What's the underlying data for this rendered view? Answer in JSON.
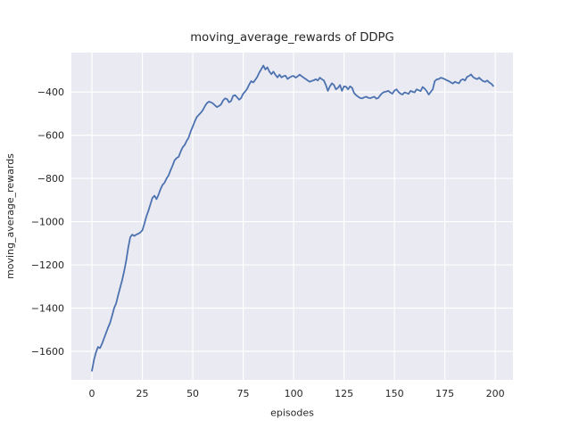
{
  "figure": {
    "title": "moving_average_rewards of DDPG",
    "xlabel": "episodes",
    "ylabel": "moving_average_rewards"
  },
  "chart_data": {
    "type": "line",
    "title": "moving_average_rewards of DDPG",
    "xlabel": "episodes",
    "ylabel": "moving_average_rewards",
    "legend": false,
    "grid": true,
    "style": "seaborn-darkgrid",
    "xlim": [
      -10.2,
      208.8
    ],
    "ylim": [
      -1732,
      -218
    ],
    "xticks": [
      0,
      25,
      50,
      75,
      100,
      125,
      150,
      175,
      200
    ],
    "yticks": [
      -400,
      -600,
      -800,
      -1000,
      -1200,
      -1400,
      -1600
    ],
    "colors": {
      "line": "#4C72B0",
      "plot_bg": "#EAEAF2",
      "grid": "#FFFFFF",
      "text": "#262626",
      "figure_bg": "#FFFFFF"
    },
    "series": [
      {
        "name": "moving_average_rewards",
        "x": [
          0,
          1,
          2,
          3,
          4,
          5,
          6,
          7,
          8,
          9,
          10,
          11,
          12,
          13,
          14,
          15,
          16,
          17,
          18,
          19,
          20,
          21,
          22,
          23,
          24,
          25,
          26,
          27,
          28,
          29,
          30,
          31,
          32,
          33,
          34,
          35,
          36,
          37,
          38,
          39,
          40,
          41,
          42,
          43,
          44,
          45,
          46,
          47,
          48,
          49,
          50,
          51,
          52,
          53,
          54,
          55,
          56,
          57,
          58,
          59,
          60,
          61,
          62,
          63,
          64,
          65,
          66,
          67,
          68,
          69,
          70,
          71,
          72,
          73,
          74,
          75,
          76,
          77,
          78,
          79,
          80,
          81,
          82,
          83,
          84,
          85,
          86,
          87,
          88,
          89,
          90,
          91,
          92,
          93,
          94,
          95,
          96,
          97,
          98,
          99,
          100,
          101,
          102,
          103,
          104,
          105,
          106,
          107,
          108,
          109,
          110,
          111,
          112,
          113,
          114,
          115,
          116,
          117,
          118,
          119,
          120,
          121,
          122,
          123,
          124,
          125,
          126,
          127,
          128,
          129,
          130,
          131,
          132,
          133,
          134,
          135,
          136,
          137,
          138,
          139,
          140,
          141,
          142,
          143,
          144,
          145,
          146,
          147,
          148,
          149,
          150,
          151,
          152,
          153,
          154,
          155,
          156,
          157,
          158,
          159,
          160,
          161,
          162,
          163,
          164,
          165,
          166,
          167,
          168,
          169,
          170,
          171,
          172,
          173,
          174,
          175,
          176,
          177,
          178,
          179,
          180,
          181,
          182,
          183,
          184,
          185,
          186,
          187,
          188,
          189,
          190,
          191,
          192,
          193,
          194,
          195,
          196,
          197,
          198,
          199
        ],
        "y": [
          -1690,
          -1640,
          -1605,
          -1580,
          -1585,
          -1565,
          -1540,
          -1515,
          -1490,
          -1468,
          -1435,
          -1400,
          -1378,
          -1340,
          -1305,
          -1270,
          -1228,
          -1180,
          -1120,
          -1072,
          -1060,
          -1066,
          -1060,
          -1056,
          -1050,
          -1040,
          -1010,
          -976,
          -950,
          -920,
          -890,
          -880,
          -896,
          -876,
          -850,
          -830,
          -820,
          -800,
          -786,
          -762,
          -740,
          -716,
          -706,
          -700,
          -676,
          -656,
          -645,
          -626,
          -610,
          -582,
          -560,
          -536,
          -516,
          -506,
          -496,
          -484,
          -466,
          -452,
          -445,
          -448,
          -453,
          -462,
          -470,
          -465,
          -458,
          -440,
          -430,
          -433,
          -448,
          -442,
          -418,
          -415,
          -425,
          -436,
          -428,
          -408,
          -398,
          -385,
          -365,
          -350,
          -356,
          -344,
          -330,
          -310,
          -294,
          -278,
          -296,
          -286,
          -306,
          -318,
          -306,
          -321,
          -333,
          -320,
          -333,
          -327,
          -325,
          -340,
          -333,
          -328,
          -326,
          -334,
          -328,
          -320,
          -327,
          -334,
          -340,
          -347,
          -353,
          -349,
          -346,
          -341,
          -347,
          -334,
          -341,
          -347,
          -368,
          -395,
          -374,
          -360,
          -368,
          -388,
          -381,
          -368,
          -395,
          -374,
          -376,
          -388,
          -374,
          -381,
          -405,
          -415,
          -422,
          -428,
          -430,
          -425,
          -422,
          -427,
          -429,
          -425,
          -422,
          -431,
          -428,
          -415,
          -405,
          -400,
          -398,
          -395,
          -403,
          -408,
          -394,
          -388,
          -400,
          -408,
          -412,
          -402,
          -405,
          -409,
          -395,
          -399,
          -402,
          -388,
          -392,
          -396,
          -377,
          -385,
          -396,
          -412,
          -400,
          -388,
          -350,
          -342,
          -340,
          -334,
          -337,
          -341,
          -346,
          -350,
          -356,
          -361,
          -353,
          -357,
          -360,
          -345,
          -341,
          -347,
          -330,
          -326,
          -319,
          -331,
          -337,
          -341,
          -334,
          -343,
          -350,
          -353,
          -347,
          -356,
          -362,
          -372
        ]
      }
    ]
  }
}
